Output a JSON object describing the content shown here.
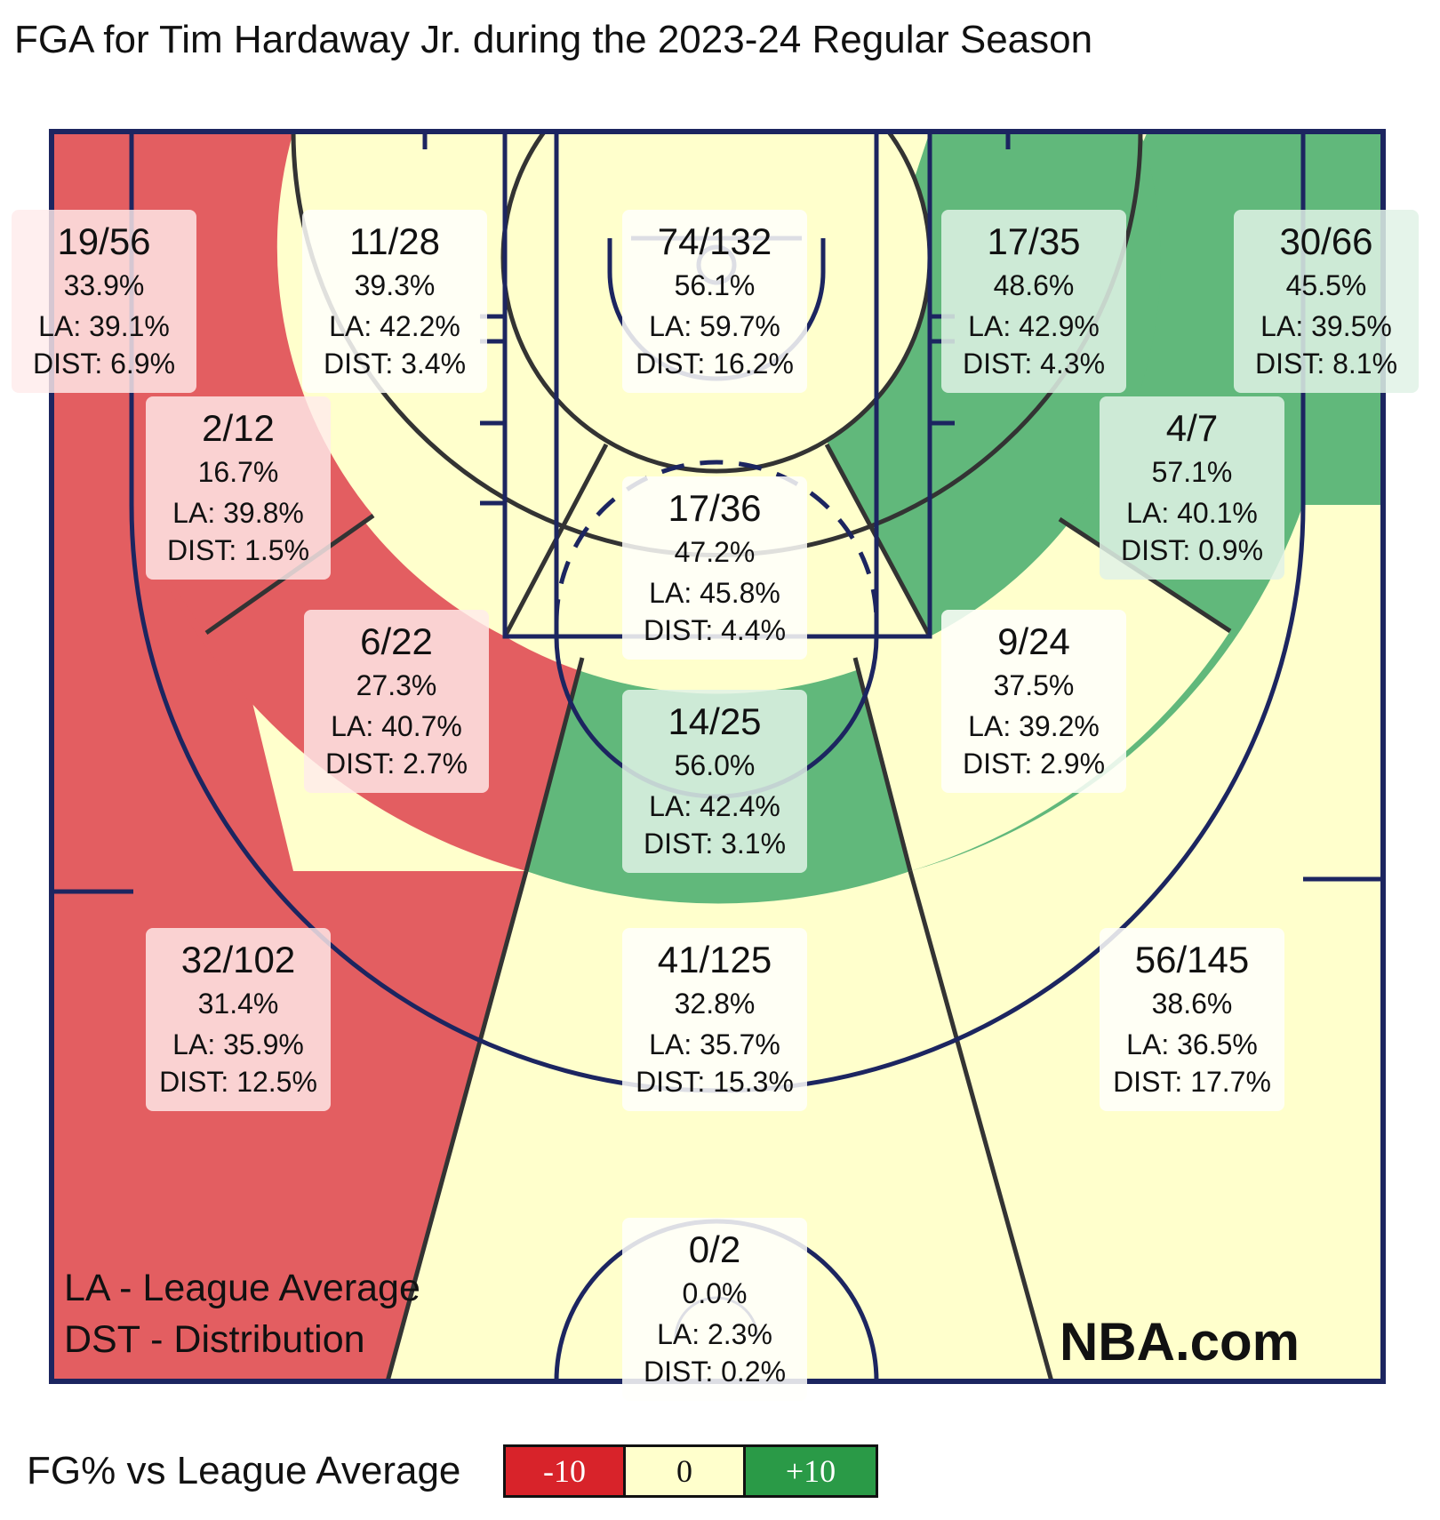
{
  "title": "FGA for Tim Hardaway Jr. during the 2023-24 Regular Season",
  "legend_note": {
    "line1": "LA - League Average",
    "line2": "DST - Distribution"
  },
  "brand": "NBA.com",
  "color_scale": {
    "label": "FG% vs League Average",
    "low": "-10",
    "mid": "0",
    "high": "+10"
  },
  "colors": {
    "below": "#e35e61",
    "average": "#ffffcc",
    "above": "#61b87b",
    "lines": "#1c2560",
    "zone_border": "#333333"
  },
  "chart_data": {
    "type": "table",
    "title": "FGA for Tim Hardaway Jr. during the 2023-24 Regular Season",
    "zones": [
      {
        "id": "left-corner-3",
        "made_attempted": "19/56",
        "fg_pct": "33.9%",
        "la": "LA: 39.1%",
        "dist": "DIST: 6.9%",
        "rating": "below"
      },
      {
        "id": "left-midrange-baseline",
        "made_attempted": "11/28",
        "fg_pct": "39.3%",
        "la": "LA: 42.2%",
        "dist": "DIST: 3.4%",
        "rating": "average"
      },
      {
        "id": "restricted-area",
        "made_attempted": "74/132",
        "fg_pct": "56.1%",
        "la": "LA: 59.7%",
        "dist": "DIST: 16.2%",
        "rating": "average"
      },
      {
        "id": "right-midrange-baseline",
        "made_attempted": "17/35",
        "fg_pct": "48.6%",
        "la": "LA: 42.9%",
        "dist": "DIST: 4.3%",
        "rating": "above"
      },
      {
        "id": "right-corner-3",
        "made_attempted": "30/66",
        "fg_pct": "45.5%",
        "la": "LA: 39.5%",
        "dist": "DIST: 8.1%",
        "rating": "above"
      },
      {
        "id": "left-midrange-wing",
        "made_attempted": "2/12",
        "fg_pct": "16.7%",
        "la": "LA: 39.8%",
        "dist": "DIST: 1.5%",
        "rating": "below"
      },
      {
        "id": "paint-non-ra",
        "made_attempted": "17/36",
        "fg_pct": "47.2%",
        "la": "LA: 45.8%",
        "dist": "DIST: 4.4%",
        "rating": "average"
      },
      {
        "id": "right-midrange-wing",
        "made_attempted": "4/7",
        "fg_pct": "57.1%",
        "la": "LA: 40.1%",
        "dist": "DIST: 0.9%",
        "rating": "above"
      },
      {
        "id": "left-midrange-elbow",
        "made_attempted": "6/22",
        "fg_pct": "27.3%",
        "la": "LA: 40.7%",
        "dist": "DIST: 2.7%",
        "rating": "below"
      },
      {
        "id": "right-midrange-elbow",
        "made_attempted": "9/24",
        "fg_pct": "37.5%",
        "la": "LA: 39.2%",
        "dist": "DIST: 2.9%",
        "rating": "average"
      },
      {
        "id": "center-midrange",
        "made_attempted": "14/25",
        "fg_pct": "56.0%",
        "la": "LA: 42.4%",
        "dist": "DIST: 3.1%",
        "rating": "above"
      },
      {
        "id": "left-wing-3",
        "made_attempted": "32/102",
        "fg_pct": "31.4%",
        "la": "LA: 35.9%",
        "dist": "DIST: 12.5%",
        "rating": "below"
      },
      {
        "id": "top-key-3",
        "made_attempted": "41/125",
        "fg_pct": "32.8%",
        "la": "LA: 35.7%",
        "dist": "DIST: 15.3%",
        "rating": "average"
      },
      {
        "id": "right-wing-3",
        "made_attempted": "56/145",
        "fg_pct": "38.6%",
        "la": "LA: 36.5%",
        "dist": "DIST: 17.7%",
        "rating": "average"
      },
      {
        "id": "backcourt",
        "made_attempted": "0/2",
        "fg_pct": "0.0%",
        "la": "LA: 2.3%",
        "dist": "DIST: 0.2%",
        "rating": "average"
      }
    ]
  }
}
